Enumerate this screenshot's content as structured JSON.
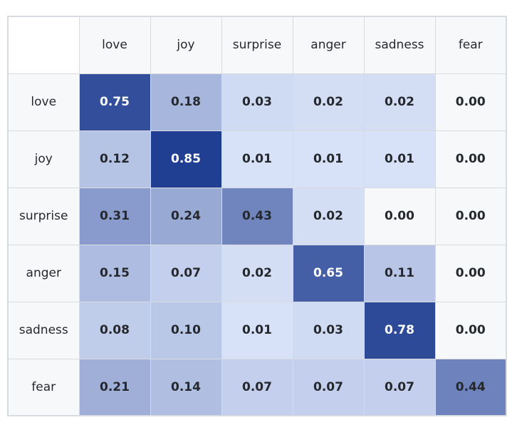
{
  "chart_data": {
    "type": "heatmap",
    "row_labels": [
      "love",
      "joy",
      "surprise",
      "anger",
      "sadness",
      "fear"
    ],
    "col_labels": [
      "love",
      "joy",
      "surprise",
      "anger",
      "sadness",
      "fear"
    ],
    "values": [
      [
        "0.75",
        "0.18",
        "0.03",
        "0.02",
        "0.02",
        "0.00"
      ],
      [
        "0.12",
        "0.85",
        "0.01",
        "0.01",
        "0.01",
        "0.00"
      ],
      [
        "0.31",
        "0.24",
        "0.43",
        "0.02",
        "0.00",
        "0.00"
      ],
      [
        "0.15",
        "0.07",
        "0.02",
        "0.65",
        "0.11",
        "0.00"
      ],
      [
        "0.08",
        "0.10",
        "0.01",
        "0.03",
        "0.78",
        "0.00"
      ],
      [
        "0.21",
        "0.14",
        "0.07",
        "0.07",
        "0.07",
        "0.44"
      ]
    ],
    "colorscale": {
      "zero": "#f7f8fa",
      "low": "#dce6fa",
      "high": "#213f92"
    },
    "text_colors": {
      "dark": "#25282d",
      "light": "#ffffff"
    }
  }
}
